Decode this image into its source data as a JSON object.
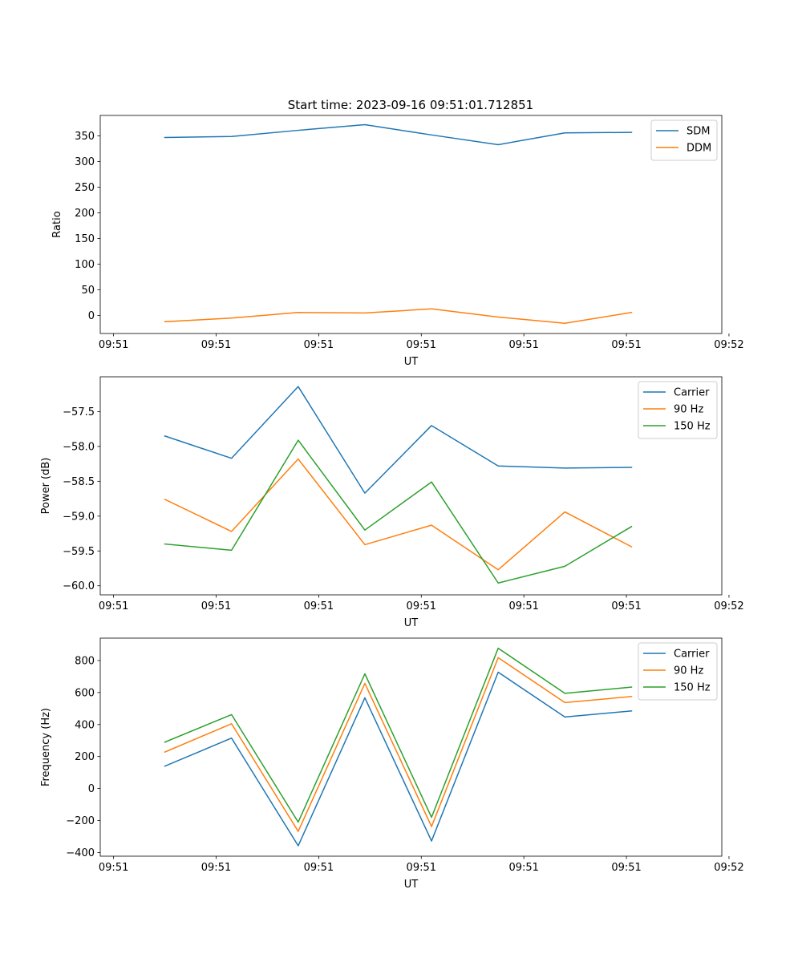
{
  "figure_title": "Start time: 2023-09-16 09:51:01.712851",
  "x_tick_labels": [
    "09:51",
    "09:51",
    "09:51",
    "09:51",
    "09:51",
    "09:51",
    "09:52"
  ],
  "x_ticks_seconds": [
    0,
    1,
    2,
    3,
    4,
    5,
    6
  ],
  "x_range_seconds": [
    -0.13,
    5.93
  ],
  "colors": {
    "blue": "#1f77b4",
    "orange": "#ff7f0e",
    "green": "#2ca02c"
  },
  "chart_data": [
    {
      "type": "line",
      "title": "Start time: 2023-09-16 09:51:01.712851",
      "xlabel": "UT",
      "ylabel": "Ratio",
      "x": [
        0.5,
        1.15,
        1.8,
        2.45,
        3.1,
        3.75,
        4.4,
        5.05
      ],
      "ylim": [
        -35,
        390
      ],
      "yticks": [
        0,
        50,
        100,
        150,
        200,
        250,
        300,
        350
      ],
      "ytick_labels": [
        "0",
        "50",
        "100",
        "150",
        "200",
        "250",
        "300",
        "350"
      ],
      "legend": "top-right",
      "series": [
        {
          "name": "SDM",
          "color": "#1f77b4",
          "values": [
            347,
            349,
            361,
            372,
            352,
            333,
            356,
            357
          ]
        },
        {
          "name": "DDM",
          "color": "#ff7f0e",
          "values": [
            -12,
            -5,
            6,
            5,
            13,
            -3,
            -15,
            6
          ]
        }
      ]
    },
    {
      "type": "line",
      "title": "",
      "xlabel": "UT",
      "ylabel": "Power (dB)",
      "x": [
        0.5,
        1.15,
        1.8,
        2.45,
        3.1,
        3.75,
        4.4,
        5.05
      ],
      "ylim": [
        -60.13,
        -57.0
      ],
      "yticks": [
        -60.0,
        -59.5,
        -59.0,
        -58.5,
        -58.0,
        -57.5
      ],
      "ytick_labels": [
        "−60.0",
        "−59.5",
        "−59.0",
        "−58.5",
        "−58.0",
        "−57.5"
      ],
      "legend": "top-right",
      "series": [
        {
          "name": "Carrier",
          "color": "#1f77b4",
          "values": [
            -57.85,
            -58.17,
            -57.14,
            -58.67,
            -57.7,
            -58.28,
            -58.31,
            -58.3
          ]
        },
        {
          "name": "90 Hz",
          "color": "#ff7f0e",
          "values": [
            -58.76,
            -59.22,
            -58.18,
            -59.41,
            -59.13,
            -59.77,
            -58.94,
            -59.44
          ]
        },
        {
          "name": "150 Hz",
          "color": "#2ca02c",
          "values": [
            -59.4,
            -59.49,
            -57.91,
            -59.2,
            -58.51,
            -59.96,
            -59.72,
            -59.15
          ]
        }
      ]
    },
    {
      "type": "line",
      "title": "",
      "xlabel": "UT",
      "ylabel": "Frequency (Hz)",
      "x": [
        0.5,
        1.15,
        1.8,
        2.45,
        3.1,
        3.75,
        4.4,
        5.05
      ],
      "ylim": [
        -423,
        940
      ],
      "yticks": [
        -400,
        -200,
        0,
        200,
        400,
        600,
        800
      ],
      "ytick_labels": [
        "−400",
        "−200",
        "0",
        "200",
        "400",
        "600",
        "800"
      ],
      "legend": "top-right",
      "series": [
        {
          "name": "Carrier",
          "color": "#1f77b4",
          "values": [
            140,
            315,
            -358,
            567,
            -328,
            727,
            447,
            485
          ]
        },
        {
          "name": "90 Hz",
          "color": "#ff7f0e",
          "values": [
            228,
            405,
            -268,
            657,
            -238,
            818,
            537,
            575
          ]
        },
        {
          "name": "150 Hz",
          "color": "#2ca02c",
          "values": [
            290,
            462,
            -210,
            717,
            -180,
            877,
            595,
            634
          ]
        }
      ]
    }
  ]
}
